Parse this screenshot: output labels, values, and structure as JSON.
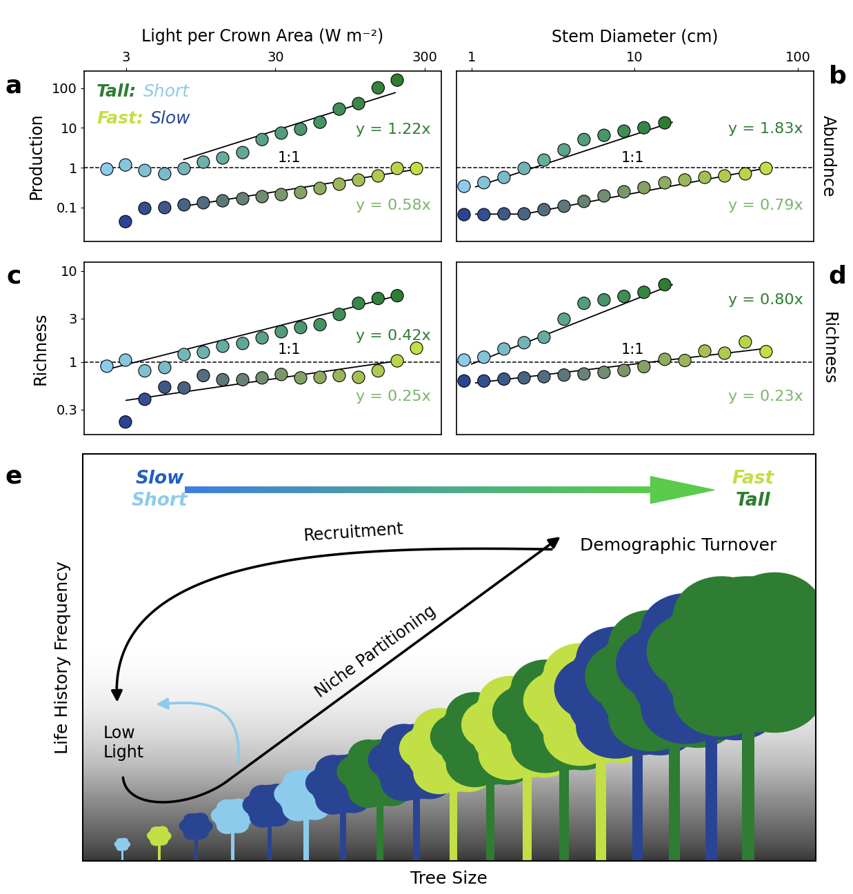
{
  "chart_data": [
    {
      "type": "scatter",
      "label": "a",
      "xlabel": "Light per Crown Area (W m⁻²)",
      "ylabel": "Production",
      "log": true,
      "xlim": [
        1.57,
        387
      ],
      "ylim": [
        0.014,
        270
      ],
      "xticks": [
        3,
        30,
        300
      ],
      "yticks": [
        0.1,
        1,
        10,
        100
      ],
      "key": [
        [
          {
            "text": "Tall:",
            "color": "#2e7d32"
          },
          {
            "text": "Short",
            "color": "#8ccbeb"
          }
        ],
        [
          {
            "text": "Fast:",
            "color": "#c2df45"
          },
          {
            "text": "Slow",
            "color": "#2a4494"
          }
        ]
      ],
      "reference": {
        "y": 1,
        "label": "1:1"
      },
      "series": [
        {
          "x": [
            2.23,
            2.97,
            4.0,
            5.44,
            7.33,
            9.87,
            13.3,
            18.1,
            24.4,
            32.8,
            44.2,
            59.6,
            80.2,
            108,
            146,
            196
          ],
          "values": [
            0.92,
            1.17,
            0.85,
            0.7,
            0.95,
            1.38,
            1.75,
            2.4,
            5.1,
            7.4,
            9.3,
            13.9,
            29.7,
            40.9,
            102,
            159
          ],
          "fit": {
            "x": [
              7.3,
              190
            ],
            "y": [
              1.61,
              77
            ],
            "label": "y = 1.22x",
            "color": "#2e7d32"
          }
        },
        {
          "x": [
            2.97,
            4.0,
            5.44,
            7.33,
            9.87,
            13.3,
            18.1,
            24.4,
            32.8,
            44.2,
            59.6,
            80.2,
            108,
            146,
            196,
            264
          ],
          "values": [
            0.044,
            0.095,
            0.099,
            0.116,
            0.131,
            0.147,
            0.166,
            0.187,
            0.211,
            0.238,
            0.302,
            0.384,
            0.488,
            0.62,
            0.96,
            0.95
          ],
          "fit": {
            "x": [
              7.3,
              255
            ],
            "y": [
              0.107,
              0.89
            ],
            "label": "y = 0.58x",
            "color": "#7cb46a"
          }
        }
      ]
    },
    {
      "type": "scatter",
      "label": "b",
      "xlabel": "Stem Diameter (cm)",
      "ylabel": "Abundnce",
      "log": true,
      "xlim": [
        0.807,
        125
      ],
      "ylim": [
        0.014,
        270
      ],
      "xticks": [
        1,
        10,
        100
      ],
      "yticks": [
        0.1,
        1,
        10,
        100
      ],
      "tick_labels": "x",
      "reference": {
        "y": 1,
        "label": "1:1"
      },
      "series": [
        {
          "x": [
            0.9,
            1.19,
            1.58,
            2.1,
            2.78,
            3.69,
            4.89,
            6.49,
            8.6,
            11.4,
            15.3
          ],
          "values": [
            0.34,
            0.42,
            0.57,
            0.96,
            1.55,
            2.8,
            5.1,
            6.5,
            8.3,
            10.1,
            13.4
          ],
          "fit": {
            "x": [
              1.06,
              17
            ],
            "y": [
              0.33,
              13.9
            ],
            "label": "y = 1.83x",
            "color": "#2e7d32"
          }
        },
        {
          "x": [
            0.9,
            1.19,
            1.58,
            2.1,
            2.78,
            3.69,
            4.89,
            6.49,
            8.6,
            11.4,
            15.3,
            20.3,
            26.9,
            35.6,
            47.7,
            63.9
          ],
          "values": [
            0.066,
            0.066,
            0.069,
            0.069,
            0.088,
            0.107,
            0.142,
            0.195,
            0.248,
            0.314,
            0.416,
            0.49,
            0.57,
            0.62,
            0.7,
            0.96
          ],
          "fit": {
            "x": [
              1.06,
              2.1,
              66
            ],
            "y": [
              0.068,
              0.068,
              1.0
            ],
            "label": "y = 0.79x",
            "color": "#7cb46a"
          }
        }
      ]
    },
    {
      "type": "scatter",
      "label": "c",
      "ylabel": "Richness",
      "log": true,
      "xlim": [
        1.57,
        387
      ],
      "ylim": [
        0.16,
        12.5
      ],
      "xticks": [
        3,
        30,
        300
      ],
      "yticks": [
        0.3,
        1,
        3,
        10
      ],
      "tick_labels": "y",
      "reference": {
        "y": 1,
        "label": "1:1"
      },
      "series": [
        {
          "x": [
            2.23,
            2.97,
            4.0,
            5.44,
            7.33,
            9.87,
            13.3,
            18.1,
            24.4,
            32.8,
            44.2,
            59.6,
            80.2,
            108,
            146,
            196
          ],
          "values": [
            0.9,
            1.05,
            0.8,
            0.87,
            1.21,
            1.28,
            1.49,
            1.6,
            1.84,
            2.15,
            2.39,
            2.57,
            3.33,
            4.41,
            4.98,
            5.34
          ],
          "fit": {
            "x": [
              2.11,
              205
            ],
            "y": [
              0.81,
              5.43
            ],
            "label": "y = 0.42x",
            "color": "#2e7d32"
          }
        },
        {
          "x": [
            2.97,
            4.0,
            5.44,
            7.33,
            9.87,
            13.3,
            18.1,
            24.4,
            32.8,
            44.2,
            59.6,
            80.2,
            108,
            146,
            196,
            264
          ],
          "values": [
            0.22,
            0.39,
            0.53,
            0.52,
            0.71,
            0.64,
            0.64,
            0.67,
            0.73,
            0.67,
            0.68,
            0.71,
            0.68,
            0.8,
            1.03,
            1.42
          ],
          "fit": {
            "x": [
              3.0,
              205
            ],
            "y": [
              0.38,
              1.04
            ],
            "label": "y = 0.25x",
            "color": "#7cb46a"
          }
        }
      ]
    },
    {
      "type": "scatter",
      "label": "d",
      "ylabel": "Richness",
      "log": true,
      "xlim": [
        0.807,
        125
      ],
      "ylim": [
        0.16,
        12.5
      ],
      "xticks": [
        1,
        10,
        100
      ],
      "yticks": [
        0.3,
        1,
        3,
        10
      ],
      "tick_labels": false,
      "reference": {
        "y": 1,
        "label": "1:1"
      },
      "series": [
        {
          "x": [
            0.9,
            1.19,
            1.58,
            2.1,
            2.78,
            3.69,
            4.89,
            6.49,
            8.6,
            11.4,
            15.3
          ],
          "values": [
            1.05,
            1.13,
            1.39,
            1.63,
            1.87,
            2.95,
            4.41,
            4.81,
            5.25,
            5.82,
            7.05
          ],
          "fit": {
            "x": [
              1.0,
              17
            ],
            "y": [
              0.95,
              7.05
            ],
            "label": "y = 0.80x",
            "color": "#2e7d32"
          }
        },
        {
          "x": [
            0.9,
            1.19,
            1.58,
            2.1,
            2.78,
            3.69,
            4.89,
            6.49,
            8.6,
            11.4,
            15.3,
            20.3,
            26.9,
            35.6,
            47.7,
            63.9
          ],
          "values": [
            0.62,
            0.62,
            0.65,
            0.67,
            0.69,
            0.72,
            0.74,
            0.77,
            0.81,
            0.89,
            1.07,
            1.04,
            1.32,
            1.25,
            1.66,
            1.3
          ],
          "fit": {
            "x": [
              1.06,
              66
            ],
            "y": [
              0.59,
              1.42
            ],
            "label": "y = 0.23x",
            "color": "#7cb46a"
          }
        }
      ]
    }
  ],
  "diagram": {
    "label": "e",
    "xlabel": "Tree Size",
    "ylabel": "Life History Frequency",
    "gradient_left": [
      "Slow",
      "Short"
    ],
    "gradient_right": [
      "Fast",
      "Tall"
    ],
    "nodes": {
      "low_light": "Low\nLight",
      "turnover": "Demographic Turnover"
    },
    "edges": {
      "recruitment": "Recruitment",
      "niche": "Niche Partitioning"
    }
  }
}
